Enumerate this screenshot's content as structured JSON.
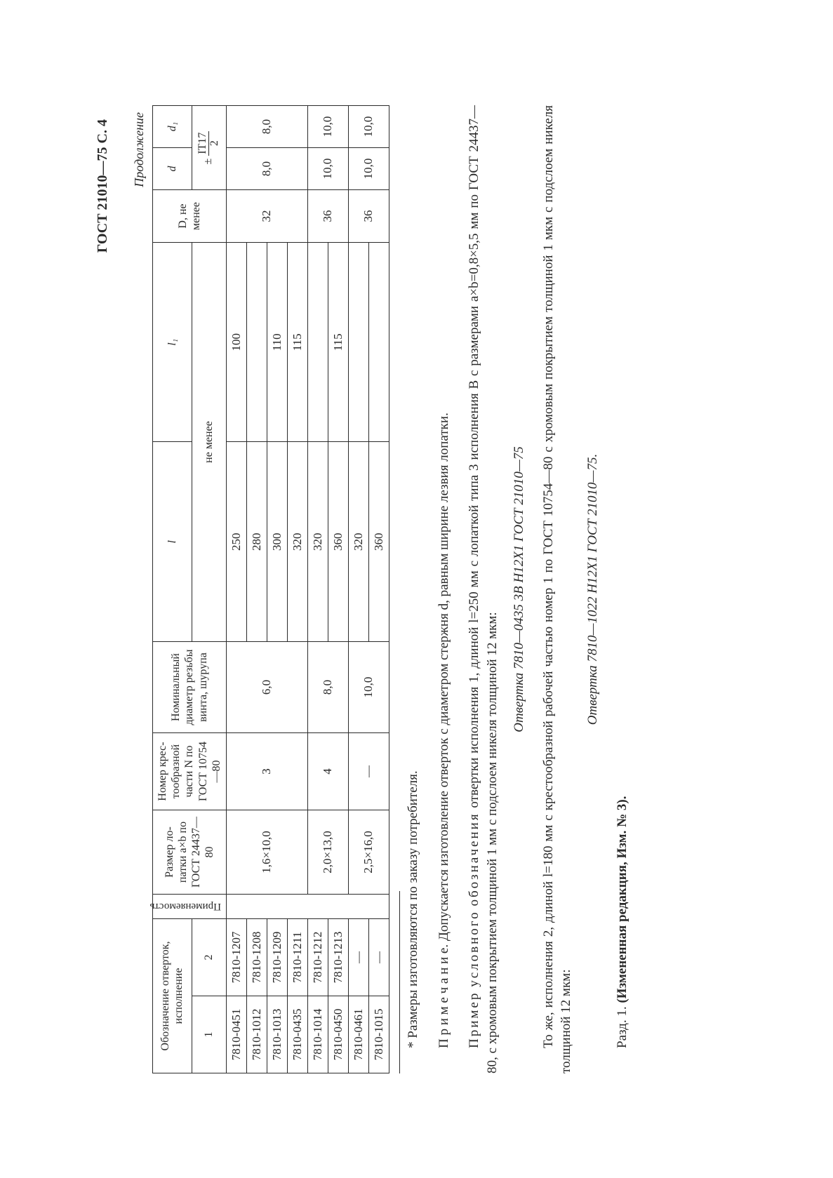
{
  "page_header": "ГОСТ 21010—75 С. 4",
  "continuation_label": "Продолжение",
  "table": {
    "headers": {
      "designation": "Обозначение отверток, исполнение",
      "col1": "1",
      "col2": "2",
      "applicability": "Приме­няе­мость",
      "blade_size": "Размер ло­патки a×b по ГОСТ 24437—80",
      "cross_number": "Номер крес­тообразной части N по ГОСТ 10754—80",
      "nominal_diameter": "Номинальный диаметр резь­бы винта, шурупа",
      "l": "l",
      "l1": "l₁",
      "d_big": "D, не менее",
      "d_small": "d",
      "d1": "d₁",
      "not_less": "не менее",
      "tolerance": "± IT17 / 2"
    },
    "groups": [
      {
        "blade": "1,6×10,0",
        "cross": "3",
        "diameter": "6,0",
        "D": "32",
        "d": "8,0",
        "d1": "8,0",
        "rows": [
          {
            "c1": "7810-0451",
            "c2": "7810-1207",
            "l": "250",
            "l1": "100"
          },
          {
            "c1": "7810-1012",
            "c2": "7810-1208",
            "l": "280",
            "l1": ""
          },
          {
            "c1": "7810-1013",
            "c2": "7810-1209",
            "l": "300",
            "l1": "110"
          },
          {
            "c1": "7810-0435",
            "c2": "7810-1211",
            "l": "320",
            "l1": "115"
          }
        ]
      },
      {
        "blade": "2,0×13,0",
        "cross": "4",
        "diameter": "8,0",
        "D": "36",
        "d": "10,0",
        "d1": "10,0",
        "rows": [
          {
            "c1": "7810-1014",
            "c2": "7810-1212",
            "l": "320",
            "l1": ""
          },
          {
            "c1": "7810-0450",
            "c2": "7810-1213",
            "l": "360",
            "l1": "115"
          }
        ]
      },
      {
        "blade": "2,5×16,0",
        "cross": "—",
        "diameter": "10,0",
        "D": "36",
        "d": "10,0",
        "d1": "10,0",
        "rows": [
          {
            "c1": "7810-0461",
            "c2": "—",
            "l": "320",
            "l1": ""
          },
          {
            "c1": "7810-1015",
            "c2": "—",
            "l": "360",
            "l1": ""
          }
        ]
      }
    ]
  },
  "footnote_star": "* Размеры изготовляются по заказу потребителя.",
  "note_line": "П р и м е ч а н и е. Допускается изготовление отверток с диаметром стержня d, равным ширине лезвия лопатки.",
  "example_label": "Пример",
  "example_word": "условного",
  "example_word2": "обозначения",
  "example_rest": " отвертки исполнения 1, длиной l=250 мм с лопаткой типа 3 исполнения B с размерами a×b=0,8×5,5 мм по ГОСТ 24437—80, с хромовым покрытием толщиной 1 мм с подслоем никеля толщиной 12 мкм:",
  "italic1": "Отвертка 7810—0435 3В Н12Х1 ГОСТ 21010—75",
  "second_paragraph": "То же, исполнения 2, длиной l=180 мм с крестообразной рабочей частью номер 1 по ГОСТ 10754—80 с хромовым покрытием толщиной 1 мкм с подслоем никеля толщиной 12 мкм:",
  "italic2": "Отвертка 7810—1022 Н12Х1 ГОСТ 21010—75.",
  "final": "Разд. 1. (Измененная редакция, Изм. № 3)."
}
